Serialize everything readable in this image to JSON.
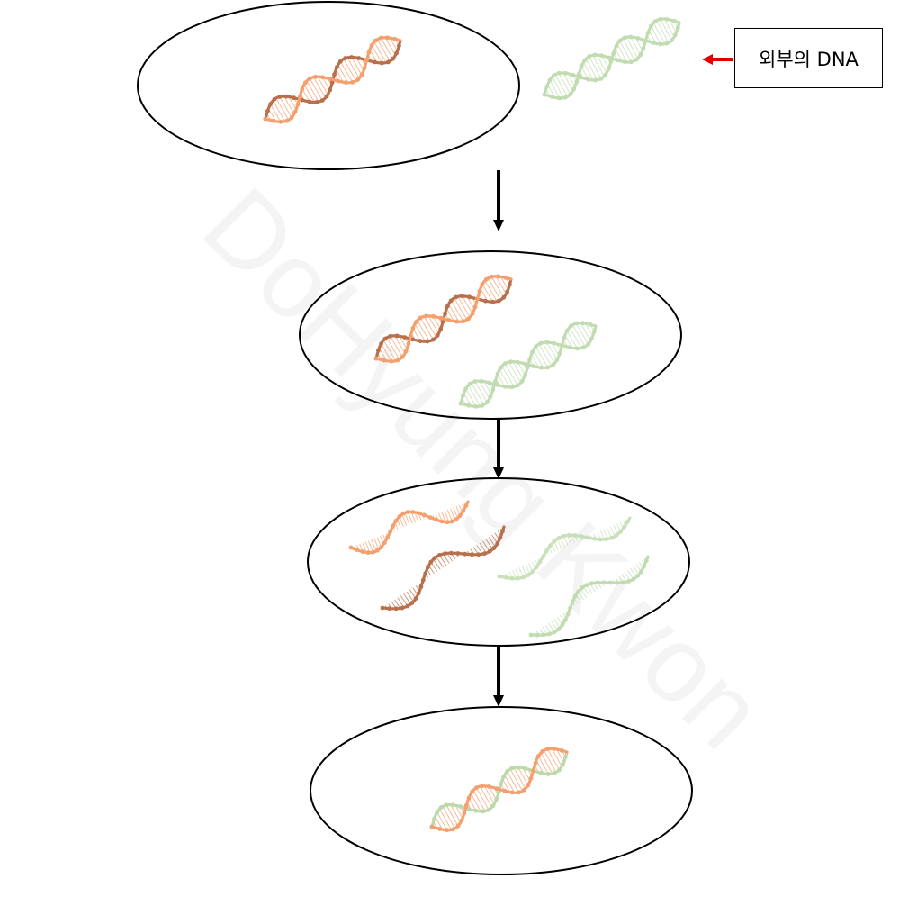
{
  "labels": {
    "external_dna": "외부의 DNA"
  },
  "watermark": "DoHyung Kwon",
  "colors": {
    "host_dna": "#f3a06e",
    "host_dna_dark": "#b8704c",
    "foreign_dna": "#bcd9aa",
    "arrow": "#000000",
    "pointer_arrow": "#e00000"
  },
  "icons": [
    "dna-helix-icon"
  ]
}
